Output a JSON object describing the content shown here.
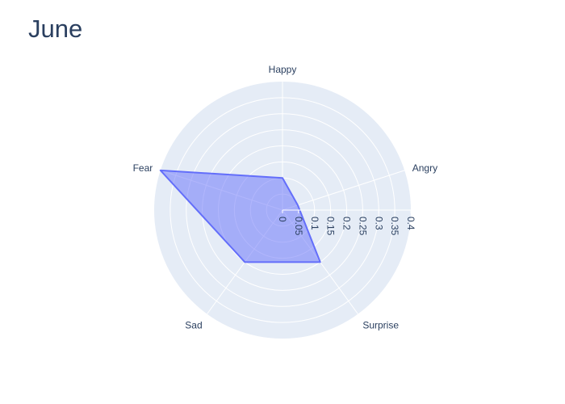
{
  "chart_data": {
    "type": "radar",
    "title": "June",
    "categories": [
      "Happy",
      "Angry",
      "Surprise",
      "Sad",
      "Fear"
    ],
    "series": [
      {
        "values": [
          0.1,
          0.05,
          0.2,
          0.2,
          0.4
        ],
        "color": "#636efa",
        "fill": "toself"
      }
    ],
    "radial_range": [
      0,
      0.4
    ],
    "radial_ticks": [
      "0",
      "0.05",
      "0.1",
      "0.15",
      "0.2",
      "0.25",
      "0.3",
      "0.35",
      "0.4"
    ],
    "grid": true,
    "background_color": "#e5ecf6"
  }
}
